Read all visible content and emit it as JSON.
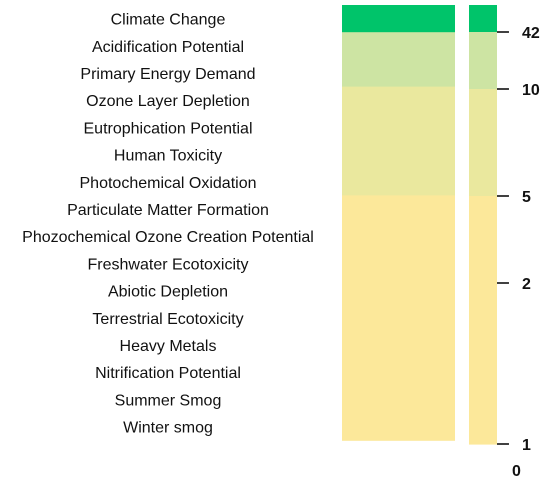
{
  "chart_data": {
    "type": "heatmap",
    "categories": [
      "Climate Change",
      "Acidification Potential",
      "Primary Energy Demand",
      "Ozone Layer Depletion",
      "Eutrophication Potential",
      "Human Toxicity",
      "Photochemical Oxidation",
      "Particulate Matter Formation",
      "Phozochemical Ozone Creation Potential",
      "Freshwater Ecotoxicity",
      "Abiotic Depletion",
      "Terrestrial Ecotoxicity",
      "Heavy Metals",
      "Nitrification Potential",
      "Summer Smog",
      "Winter smog"
    ],
    "values": [
      42,
      10,
      10,
      5,
      5,
      5,
      5,
      2,
      2,
      2,
      2,
      2,
      2,
      2,
      2,
      2
    ],
    "colors": [
      "#00C46A",
      "#CDE4A3",
      "#CDE4A3",
      "#EAE89E",
      "#EAE89E",
      "#EAE89E",
      "#EAE89E",
      "#FCE89A",
      "#FCE89A",
      "#FCE89A",
      "#FCE89A",
      "#FCE89A",
      "#FCE89A",
      "#FCE89A",
      "#FCE89A",
      "#FCE89A"
    ],
    "colorbar": {
      "ticks": [
        {
          "value": 42,
          "label": "42",
          "color": "#00C46A"
        },
        {
          "value": 10,
          "label": "10",
          "color": "#CDE4A3"
        },
        {
          "value": 5,
          "label": "5",
          "color": "#EAE89E"
        },
        {
          "value": 2,
          "label": "2",
          "color": "#FCE89A"
        },
        {
          "value": 1,
          "label": "1",
          "color": "#FCE89A"
        },
        {
          "value": 0,
          "label": "0",
          "color": null
        }
      ]
    },
    "title": "",
    "xlabel": "",
    "ylabel": ""
  }
}
